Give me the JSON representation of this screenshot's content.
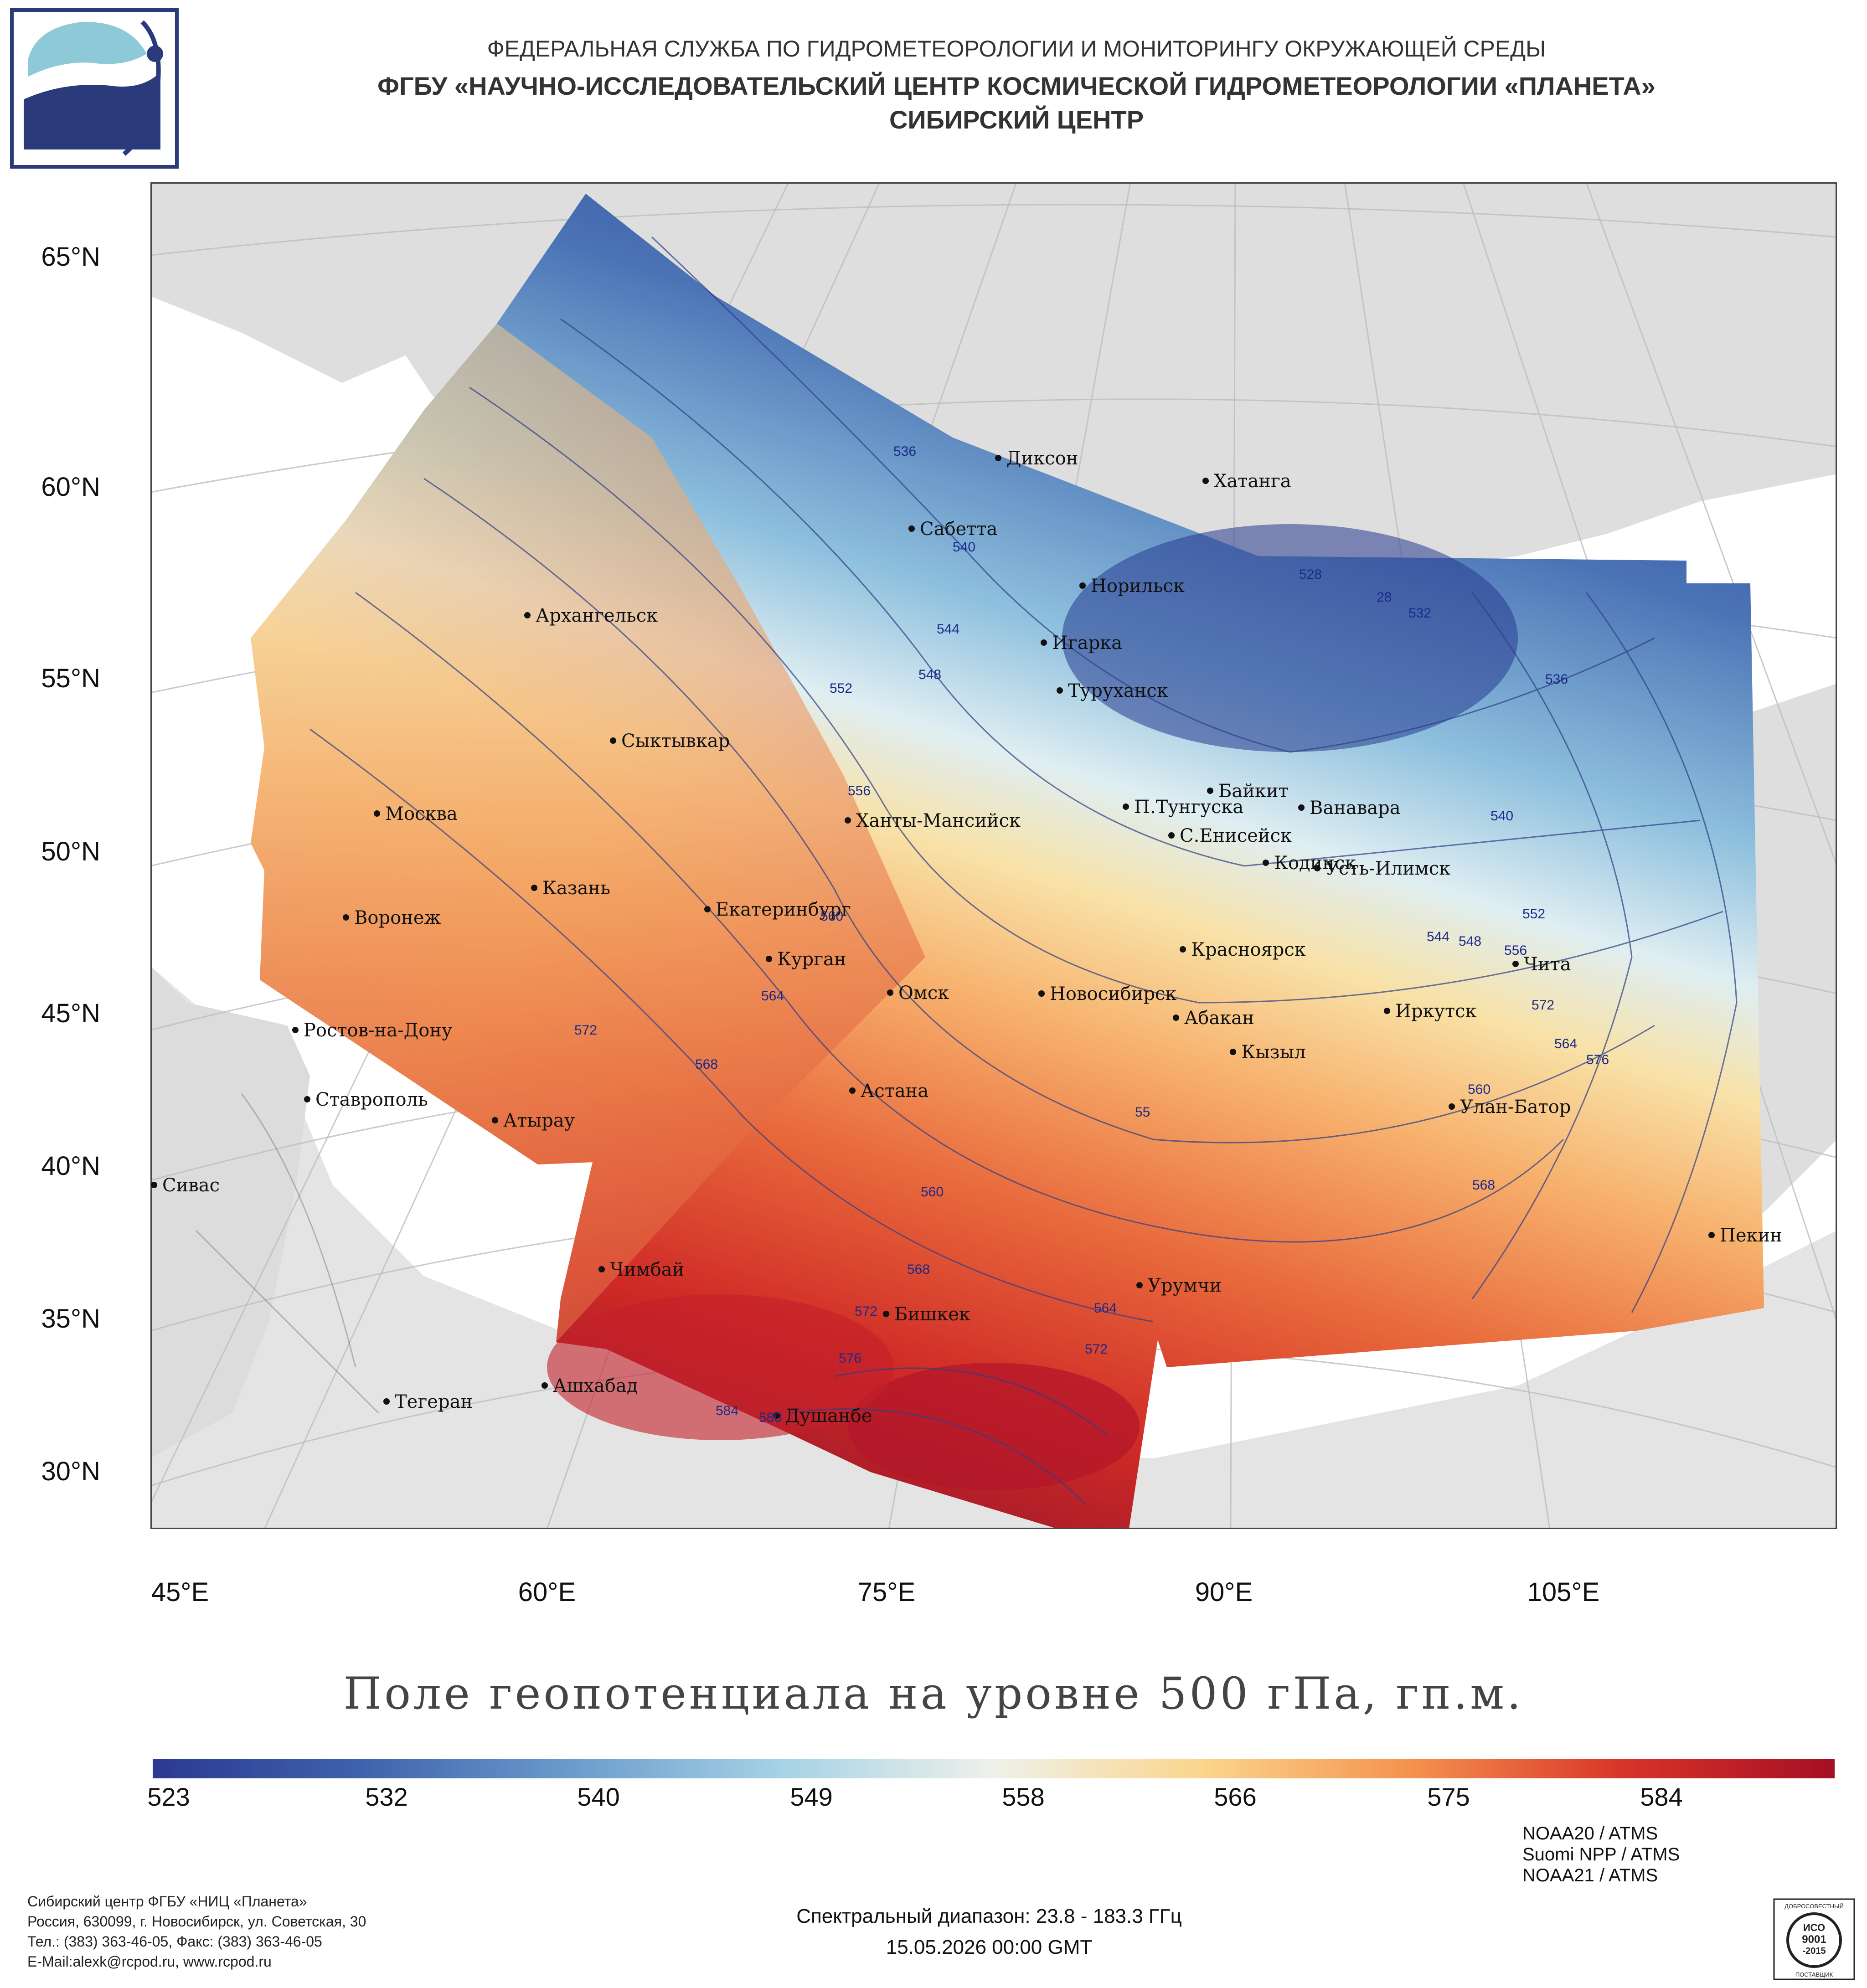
{
  "header": {
    "line1": "ФЕДЕРАЛЬНАЯ СЛУЖБА ПО ГИДРОМЕТЕОРОЛОГИИ И МОНИТОРИНГУ ОКРУЖАЮЩЕЙ СРЕДЫ",
    "line2": "ФГБУ «НАУЧНО-ИССЛЕДОВАТЕЛЬСКИЙ ЦЕНТР КОСМИЧЕСКОЙ ГИДРОМЕТЕОРОЛОГИИ «ПЛАНЕТА»",
    "line3": "СИБИРСКИЙ ЦЕНТР"
  },
  "logo_icon": "planeta-logo-icon",
  "axes": {
    "latitude_labels": [
      "65°N",
      "60°N",
      "55°N",
      "50°N",
      "45°N",
      "40°N",
      "35°N",
      "30°N"
    ],
    "longitude_labels": [
      "45°E",
      "60°E",
      "75°E",
      "90°E",
      "105°E"
    ]
  },
  "cities": [
    {
      "name": "Диксон"
    },
    {
      "name": "Хатанга"
    },
    {
      "name": "Сабетта"
    },
    {
      "name": "Норильск"
    },
    {
      "name": "Архангельск"
    },
    {
      "name": "Игарка"
    },
    {
      "name": "Туруханск"
    },
    {
      "name": "Сыктывкар"
    },
    {
      "name": "Байкит"
    },
    {
      "name": "Москва"
    },
    {
      "name": "П.Тунгуска"
    },
    {
      "name": "Ванавара"
    },
    {
      "name": "Ханты-Мансийск"
    },
    {
      "name": "С.Енисейск"
    },
    {
      "name": "Кодинск"
    },
    {
      "name": "Усть-Илимск"
    },
    {
      "name": "Казань"
    },
    {
      "name": "Екатеринбург"
    },
    {
      "name": "Воронеж"
    },
    {
      "name": "Красноярск"
    },
    {
      "name": "Курган"
    },
    {
      "name": "Чита"
    },
    {
      "name": "Омск"
    },
    {
      "name": "Новосибирск"
    },
    {
      "name": "Иркутск"
    },
    {
      "name": "Ростов-на-Дону"
    },
    {
      "name": "Абакан"
    },
    {
      "name": "Кызыл"
    },
    {
      "name": "Астана"
    },
    {
      "name": "Ставрополь"
    },
    {
      "name": "Улан-Батор"
    },
    {
      "name": "Атырау"
    },
    {
      "name": "Сивас"
    },
    {
      "name": "Пекин"
    },
    {
      "name": "Чимбай"
    },
    {
      "name": "Урумчи"
    },
    {
      "name": "Бишкек"
    },
    {
      "name": "Ашхабад"
    },
    {
      "name": "Тегеран"
    },
    {
      "name": "Душанбе"
    }
  ],
  "contour_labels": [
    "536",
    "540",
    "528",
    "28",
    "532",
    "544",
    "548",
    "552",
    "536",
    "556",
    "540",
    "560",
    "552",
    "544",
    "548",
    "556",
    "564",
    "572",
    "572",
    "564",
    "576",
    "568",
    "560",
    "55",
    "560",
    "568",
    "568",
    "572",
    "564",
    "572",
    "576",
    "584",
    "580"
  ],
  "map_title": "Поле геопотенциала на уровне 500 гПа, гп.м.",
  "colorbar": {
    "tick_labels": [
      "523",
      "532",
      "540",
      "549",
      "558",
      "566",
      "575",
      "584"
    ],
    "colors": [
      "#2b3990",
      "#3f63ad",
      "#6b9ccc",
      "#a6d3e6",
      "#eef1ea",
      "#fbd58c",
      "#f4914e",
      "#d83328",
      "#a50f24"
    ]
  },
  "contact": {
    "line1": "Сибирский центр ФГБУ «НИЦ «Планета»",
    "line2": "Россия, 630099, г. Новосибирск, ул. Советская, 30",
    "line3": "Тел.: (383) 363-46-05, Факс: (383) 363-46-05",
    "line4": "E-Mail:alexk@rcpod.ru, www.rcpod.ru"
  },
  "spectral_range": "Спектральный диапазон: 23.8 - 183.3 ГГц",
  "datetime": "15.05.2026 00:00 GMT",
  "satellites": [
    "NOAA20 / ATMS",
    "Suomi NPP / ATMS",
    "NOAA21 / ATMS"
  ],
  "iso_badge": {
    "top_text": "ДОБРОСОВЕСТНЫЙ",
    "line1": "ИСО",
    "line2": "9001",
    "line3": "-2015",
    "bottom_text": "ПОСТАВЩИК"
  }
}
